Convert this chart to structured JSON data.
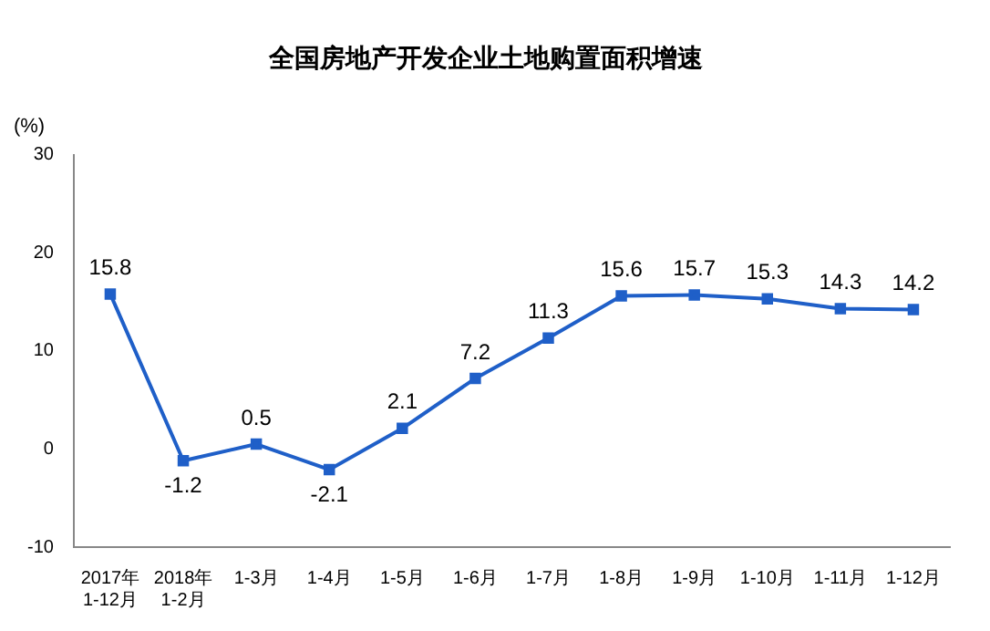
{
  "chart_data": {
    "type": "line",
    "title": "全国房地产开发企业土地购置面积增速",
    "ylabel": "(%)",
    "categories": [
      "2017年 1-12月",
      "2018年 1-2月",
      "1-3月",
      "1-4月",
      "1-5月",
      "1-6月",
      "1-7月",
      "1-8月",
      "1-9月",
      "1-10月",
      "1-11月",
      "1-12月"
    ],
    "series": [
      {
        "color": "#1f5fc8",
        "values": [
          15.8,
          -1.2,
          0.5,
          -2.1,
          2.1,
          7.2,
          11.3,
          15.6,
          15.7,
          15.3,
          14.3,
          14.2
        ]
      }
    ],
    "ylim": [
      -10,
      30
    ],
    "yticks": [
      -10,
      0,
      10,
      20,
      30
    ],
    "grid": false,
    "legend": false,
    "marker": "square",
    "line_style": "solid",
    "data_labels": true
  }
}
